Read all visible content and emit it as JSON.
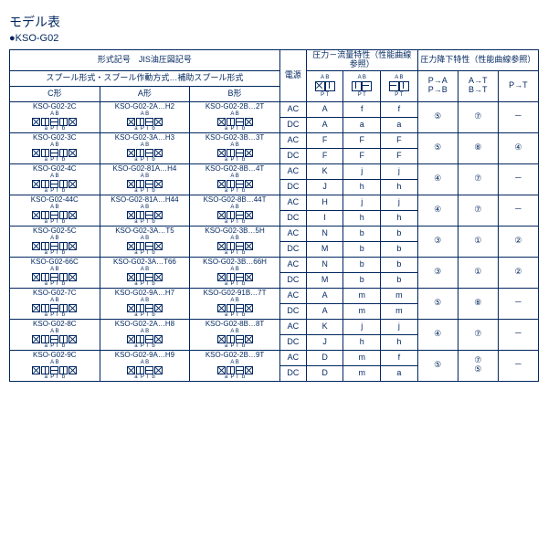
{
  "title": "モデル表",
  "subtitle": "●KSO-G02",
  "hdr": {
    "shape": "形式記号　JIS油圧図記号",
    "spool": "スプール形式・スプール作動方式…補助スプール形式",
    "c": "C形",
    "a": "A形",
    "b": "B形",
    "power": "電源",
    "flow": "圧力－流量特性（性能曲線参照）",
    "drop": "圧力降下特性（性能曲線参照）",
    "pa": "P→A\nP→B",
    "at": "A→T\nB→T",
    "pt": "P→T",
    "ab": "A B",
    "ptl": "P T",
    "apl": "A  B",
    "ptr": "P  T"
  },
  "rows": [
    {
      "c": "KSO-G02-2C",
      "a": "KSO-G02-2A…H2",
      "b": "KSO-G02-2B…2T",
      "pw": [
        "AC",
        "DC"
      ],
      "f1": [
        "A",
        "A"
      ],
      "f2": [
        "f",
        "a"
      ],
      "f3": [
        "f",
        "a"
      ],
      "d1": "⑤",
      "d2": "⑦",
      "d3": "－"
    },
    {
      "c": "KSO-G02-3C",
      "a": "KSO-G02-3A…H3",
      "b": "KSO-G02-3B…3T",
      "pw": [
        "AC",
        "DC"
      ],
      "f1": [
        "F",
        "F"
      ],
      "f2": [
        "F",
        "F"
      ],
      "f3": [
        "F",
        "F"
      ],
      "d1": "⑤",
      "d2": "⑧",
      "d3": "④"
    },
    {
      "c": "KSO-G02-4C",
      "a": "KSO-G02-81A…H4",
      "b": "KSO-G02-8B…4T",
      "pw": [
        "AC",
        "DC"
      ],
      "f1": [
        "K",
        "J"
      ],
      "f2": [
        "j",
        "h"
      ],
      "f3": [
        "j",
        "h"
      ],
      "d1": "④",
      "d2": "⑦",
      "d3": "－"
    },
    {
      "c": "KSO-G02-44C",
      "a": "KSO-G02-81A…H44",
      "b": "KSO-G02-8B…44T",
      "pw": [
        "AC",
        "DC"
      ],
      "f1": [
        "H",
        "I"
      ],
      "f2": [
        "j",
        "h"
      ],
      "f3": [
        "j",
        "h"
      ],
      "d1": "④",
      "d2": "⑦",
      "d3": "－"
    },
    {
      "c": "KSO-G02-5C",
      "a": "KSO-G02-3A…T5",
      "b": "KSO-G02-3B…5H",
      "pw": [
        "AC",
        "DC"
      ],
      "f1": [
        "N",
        "M"
      ],
      "f2": [
        "b",
        "b"
      ],
      "f3": [
        "b",
        "b"
      ],
      "d1": "③",
      "d2": "①",
      "d3": "②"
    },
    {
      "c": "KSO-G02-66C",
      "a": "KSO-G02-3A…T66",
      "b": "KSO-G02-3B…66H",
      "pw": [
        "AC",
        "DC"
      ],
      "f1": [
        "N",
        "M"
      ],
      "f2": [
        "b",
        "b"
      ],
      "f3": [
        "b",
        "b"
      ],
      "d1": "③",
      "d2": "①",
      "d3": "②"
    },
    {
      "c": "KSO-G02-7C",
      "a": "KSO-G02-9A…H7",
      "b": "KSO-G02-91B…7T",
      "pw": [
        "AC",
        "DC"
      ],
      "f1": [
        "A",
        "A"
      ],
      "f2": [
        "m",
        "m"
      ],
      "f3": [
        "m",
        "m"
      ],
      "d1": "⑤",
      "d2": "⑧",
      "d3": "－"
    },
    {
      "c": "KSO-G02-8C",
      "a": "KSO-G02-2A…H8",
      "b": "KSO-G02-8B…8T",
      "pw": [
        "AC",
        "DC"
      ],
      "f1": [
        "K",
        "J"
      ],
      "f2": [
        "j",
        "h"
      ],
      "f3": [
        "j",
        "h"
      ],
      "d1": "④",
      "d2": "⑦",
      "d3": "－"
    },
    {
      "c": "KSO-G02-9C",
      "a": "KSO-G02-9A…H9",
      "b": "KSO-G02-2B…9T",
      "pw": [
        "AC",
        "DC"
      ],
      "f1": [
        "D",
        "D"
      ],
      "f2": [
        "m",
        "m"
      ],
      "f3": [
        "f",
        "a"
      ],
      "d1": "⑤",
      "d2": "⑦\n⑤",
      "d3": "－"
    }
  ]
}
